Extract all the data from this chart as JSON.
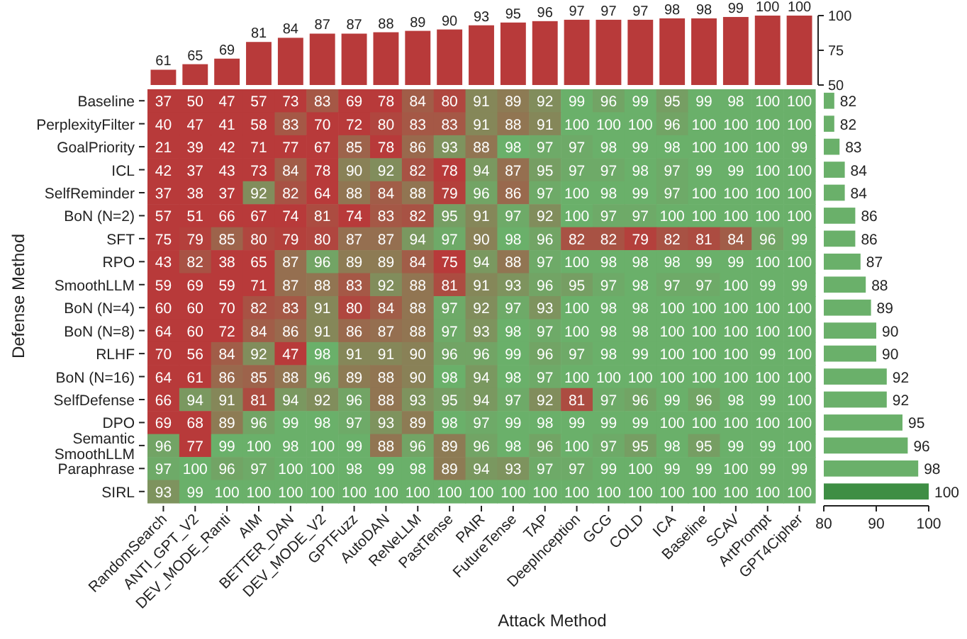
{
  "chart_data": [
    {
      "type": "bar",
      "values": [
        61,
        65,
        69,
        81,
        84,
        87,
        87,
        88,
        89,
        90,
        93,
        95,
        96,
        97,
        97,
        97,
        98,
        98,
        99,
        100,
        100
      ],
      "color": "#b83a3a",
      "ylim": [
        50,
        100
      ],
      "yticks": [
        50,
        75,
        100
      ],
      "data_labels": true,
      "tick_labels": "y"
    },
    {
      "type": "heatmap",
      "data_labels": true,
      "xlabel": "Attack Method",
      "ylabel": "Defense Method",
      "categories": [
        "RandomSearch",
        "ANTI_GPT_V2",
        "DEV_MODE_Ranti",
        "AIM",
        "BETTER_DAN",
        "DEV_MODE_V2",
        "GPTFuzz",
        "AutoDAN",
        "ReNeLLM",
        "PastTense",
        "PAIR",
        "FutureTense",
        "TAP",
        "DeepInception",
        "GCG",
        "COLD",
        "ICA",
        "Baseline",
        "SCAV",
        "ArtPrompt",
        "GPT4Cipher"
      ],
      "y_categories": [
        "Baseline",
        "PerplexityFilter",
        "GoalPriority",
        "ICL",
        "SelfReminder",
        "BoN (N=2)",
        "SFT",
        "RPO",
        "SmoothLLM",
        "BoN (N=4)",
        "BoN (N=8)",
        "RLHF",
        "BoN (N=16)",
        "SelfDefense",
        "DPO",
        "Semantic SmoothLLM",
        "Paraphrase",
        "SIRL"
      ],
      "cells": [
        [
          37,
          50,
          47,
          57,
          73,
          83,
          69,
          78,
          84,
          80,
          91,
          89,
          92,
          99,
          96,
          99,
          95,
          99,
          98,
          100,
          100
        ],
        [
          40,
          47,
          41,
          58,
          83,
          70,
          72,
          80,
          83,
          83,
          91,
          88,
          91,
          100,
          100,
          100,
          96,
          100,
          100,
          100,
          100
        ],
        [
          21,
          39,
          42,
          71,
          77,
          67,
          85,
          78,
          86,
          93,
          88,
          98,
          97,
          97,
          98,
          99,
          98,
          100,
          100,
          100,
          99
        ],
        [
          42,
          37,
          43,
          73,
          84,
          78,
          90,
          92,
          82,
          78,
          94,
          87,
          95,
          97,
          97,
          98,
          97,
          99,
          99,
          100,
          100
        ],
        [
          37,
          38,
          37,
          92,
          82,
          64,
          88,
          84,
          88,
          79,
          96,
          86,
          97,
          100,
          98,
          99,
          97,
          100,
          100,
          100,
          100
        ],
        [
          57,
          51,
          66,
          67,
          74,
          81,
          74,
          83,
          82,
          95,
          91,
          97,
          92,
          100,
          97,
          97,
          100,
          100,
          100,
          100,
          100
        ],
        [
          75,
          79,
          85,
          80,
          79,
          80,
          87,
          87,
          94,
          97,
          90,
          98,
          96,
          82,
          82,
          79,
          82,
          81,
          84,
          96,
          99
        ],
        [
          43,
          82,
          38,
          65,
          87,
          96,
          89,
          89,
          84,
          75,
          94,
          88,
          97,
          100,
          98,
          98,
          98,
          99,
          99,
          100,
          100
        ],
        [
          59,
          69,
          59,
          71,
          87,
          88,
          83,
          92,
          88,
          81,
          91,
          93,
          96,
          95,
          97,
          98,
          97,
          97,
          100,
          99,
          99
        ],
        [
          60,
          60,
          70,
          82,
          83,
          91,
          80,
          84,
          88,
          97,
          92,
          97,
          93,
          100,
          98,
          98,
          100,
          100,
          100,
          100,
          100
        ],
        [
          64,
          60,
          72,
          84,
          86,
          91,
          86,
          87,
          88,
          97,
          93,
          98,
          97,
          100,
          98,
          98,
          100,
          100,
          100,
          100,
          100
        ],
        [
          70,
          56,
          84,
          92,
          47,
          98,
          91,
          91,
          90,
          96,
          96,
          99,
          96,
          97,
          98,
          99,
          100,
          100,
          100,
          99,
          100
        ],
        [
          64,
          61,
          86,
          85,
          88,
          96,
          89,
          88,
          90,
          98,
          94,
          98,
          97,
          100,
          100,
          100,
          100,
          100,
          100,
          100,
          100
        ],
        [
          66,
          94,
          91,
          81,
          94,
          92,
          96,
          88,
          93,
          95,
          94,
          97,
          92,
          81,
          97,
          96,
          99,
          96,
          98,
          99,
          100
        ],
        [
          69,
          68,
          89,
          96,
          99,
          98,
          97,
          93,
          89,
          98,
          97,
          99,
          98,
          99,
          99,
          99,
          100,
          100,
          100,
          100,
          100
        ],
        [
          96,
          77,
          99,
          100,
          98,
          100,
          99,
          88,
          96,
          89,
          96,
          98,
          96,
          100,
          97,
          95,
          98,
          95,
          99,
          99,
          100
        ],
        [
          97,
          100,
          96,
          97,
          100,
          100,
          98,
          99,
          98,
          89,
          94,
          93,
          97,
          97,
          99,
          100,
          99,
          99,
          100,
          99,
          99
        ],
        [
          93,
          99,
          100,
          100,
          100,
          100,
          100,
          100,
          100,
          100,
          100,
          100,
          100,
          100,
          100,
          100,
          100,
          100,
          100,
          100,
          100
        ]
      ]
    },
    {
      "type": "bar",
      "orientation": "horizontal",
      "values": [
        82,
        82,
        83,
        84,
        84,
        86,
        86,
        87,
        88,
        89,
        90,
        90,
        92,
        92,
        95,
        96,
        98,
        100
      ],
      "colors": [
        "#6ab06a",
        "#6ab06a",
        "#6ab06a",
        "#6ab06a",
        "#6ab06a",
        "#6ab06a",
        "#6ab06a",
        "#6ab06a",
        "#6ab06a",
        "#6ab06a",
        "#6ab06a",
        "#6ab06a",
        "#6ab06a",
        "#6ab06a",
        "#6ab06a",
        "#6ab06a",
        "#6ab06a",
        "#3e8e44"
      ],
      "xlim": [
        80,
        100
      ],
      "xticks": [
        80,
        90,
        100
      ],
      "data_labels": true,
      "tick_labels": "x"
    }
  ]
}
